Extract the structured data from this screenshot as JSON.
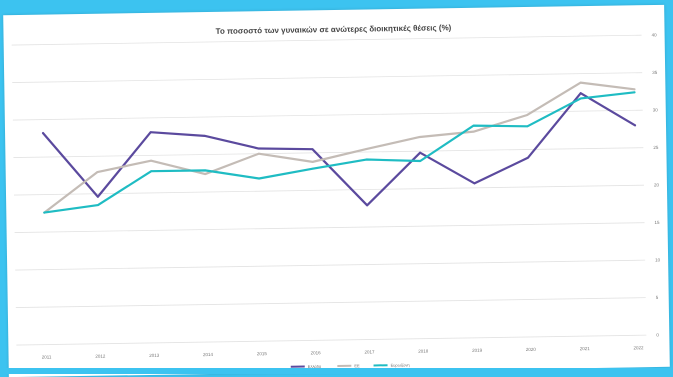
{
  "chart_data": {
    "type": "line",
    "title": "Το ποσοστό των γυναικών σε ανώτερες διοικητικές θέσεις (%)",
    "xlabel": "",
    "ylabel": "",
    "categories": [
      "2011",
      "2012",
      "2013",
      "2014",
      "2015",
      "2016",
      "2017",
      "2018",
      "2019",
      "2020",
      "2021",
      "2022"
    ],
    "y_ticks": [
      "40",
      "35",
      "30",
      "25",
      "20",
      "15",
      "10",
      "5",
      "0"
    ],
    "ylim": [
      0,
      40
    ],
    "grid": true,
    "legend_position": "bottom-center",
    "series": [
      {
        "name": "Ελλάδα",
        "color": "#5b4a9e",
        "values": [
          28.2,
          19.6,
          28.1,
          27.5,
          25.7,
          25.5,
          17.9,
          24.8,
          20.6,
          23.9,
          32.4,
          28.0
        ]
      },
      {
        "name": "ΕΕ",
        "color": "#c4bcb6",
        "values": [
          17.6,
          22.9,
          24.3,
          22.4,
          25.0,
          23.8,
          25.4,
          26.9,
          27.5,
          29.6,
          33.8,
          32.8
        ]
      },
      {
        "name": "Ευρωζώνη",
        "color": "#1fbcc3",
        "values": [
          17.6,
          18.5,
          22.9,
          22.9,
          21.7,
          22.9,
          24.0,
          23.7,
          28.3,
          28.1,
          31.7,
          32.4
        ]
      }
    ]
  }
}
